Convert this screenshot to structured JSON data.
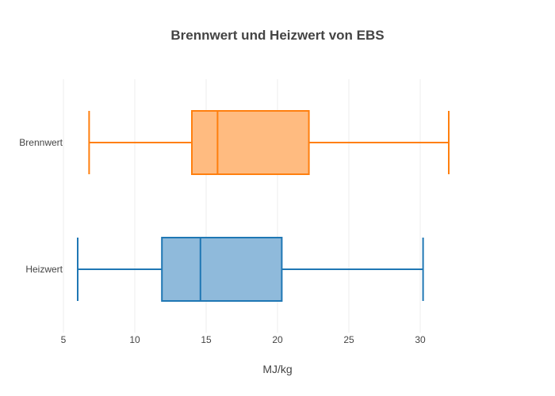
{
  "chart_data": {
    "type": "box",
    "orientation": "horizontal",
    "title": "Brennwert und Heizwert von EBS",
    "xlabel": "MJ/kg",
    "ylabel": "",
    "xlim": [
      5,
      35
    ],
    "xticks": [
      5,
      10,
      15,
      20,
      25,
      30
    ],
    "grid": true,
    "legend": "none",
    "series": [
      {
        "name": "Brennwert",
        "min": 6.8,
        "q1": 14.0,
        "median": 15.8,
        "q3": 22.2,
        "max": 32.0,
        "line_color": "#ff7f0e",
        "fill_color": "#ffbb80"
      },
      {
        "name": "Heizwert",
        "min": 6.0,
        "q1": 11.9,
        "median": 14.6,
        "q3": 20.3,
        "max": 30.2,
        "line_color": "#1f77b4",
        "fill_color": "#8fbadb"
      }
    ]
  }
}
